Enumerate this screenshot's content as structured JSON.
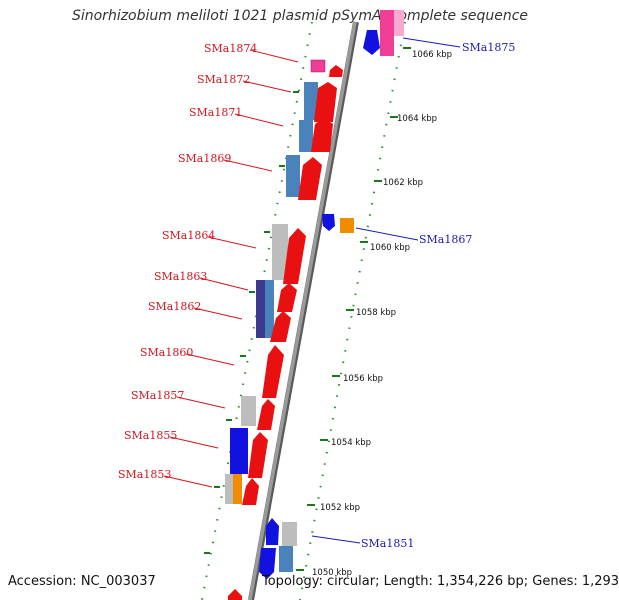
{
  "header": {
    "title": "Sinorhizobium meliloti 1021 plasmid pSymA, complete sequence"
  },
  "footer": {
    "accession": "Accession: NC_003037",
    "summary": "Topology: circular; Length: 1,354,226 bp; Genes: 1,293"
  },
  "colors": {
    "forward": "#e81010",
    "reverse": "#1212e0",
    "steel": "#4a82bb",
    "grey": "#bdbdbd",
    "orange": "#f08c00",
    "pink": "#ee3e95",
    "indigo": "#3a3a90",
    "label_red": "#d4161e",
    "label_blue": "#1a1ab8",
    "dots": "#2e8b2e"
  },
  "scale": {
    "ticks": [
      {
        "label": "1066 kbp"
      },
      {
        "label": "1064 kbp"
      },
      {
        "label": "1062 kbp"
      },
      {
        "label": "1060 kbp"
      },
      {
        "label": "1058 kbp"
      },
      {
        "label": "1056 kbp"
      },
      {
        "label": "1054 kbp"
      },
      {
        "label": "1052 kbp"
      },
      {
        "label": "1050 kbp"
      }
    ]
  },
  "genes": {
    "labels_left": [
      "SMa1874",
      "SMa1872",
      "SMa1871",
      "SMa1869",
      "SMa1864",
      "SMa1863",
      "SMa1862",
      "SMa1860",
      "SMa1857",
      "SMa1855",
      "SMa1853"
    ],
    "labels_right": [
      "SMa1875",
      "SMa1867",
      "SMa1851"
    ]
  }
}
